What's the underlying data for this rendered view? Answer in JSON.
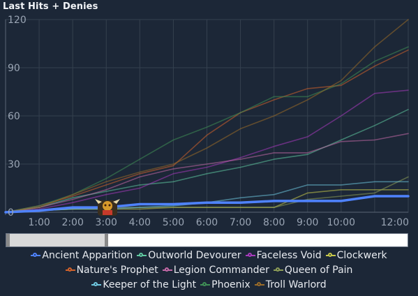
{
  "chart_data": {
    "type": "line",
    "title": "Last Hits + Denies",
    "xlabel": "",
    "ylabel": "",
    "x_ticks": [
      "1:00",
      "2:00",
      "3:00",
      "4:00",
      "5:00",
      "6:00",
      "7:00",
      "8:00",
      "9:00",
      "10:00",
      "12:00"
    ],
    "x_minutes": [
      0,
      1,
      2,
      3,
      4,
      5,
      6,
      7,
      8,
      9,
      10,
      11,
      12
    ],
    "ylim": [
      0,
      120
    ],
    "y_ticks": [
      0,
      30,
      60,
      90,
      120
    ],
    "grid": true,
    "legend_placement": "bottom",
    "series": [
      {
        "name": "Ancient Apparition",
        "color": "#4f83ff",
        "highlight": true,
        "values": [
          0,
          1,
          3,
          3,
          5,
          5,
          6,
          6,
          7,
          7,
          7,
          10,
          10
        ]
      },
      {
        "name": "Outworld Devourer",
        "color": "#5fc8a0",
        "values": [
          0,
          3,
          9,
          13,
          17,
          19,
          24,
          28,
          33,
          36,
          45,
          54,
          64
        ]
      },
      {
        "name": "Faceless Void",
        "color": "#a83bbd",
        "values": [
          0,
          2,
          6,
          11,
          15,
          24,
          28,
          34,
          41,
          47,
          60,
          74,
          76
        ]
      },
      {
        "name": "Clockwerk",
        "color": "#c7c84a",
        "values": [
          0,
          1,
          2,
          2,
          2,
          3,
          3,
          3,
          3,
          12,
          14,
          14,
          14
        ]
      },
      {
        "name": "Nature's Prophet",
        "color": "#d2622b",
        "values": [
          0,
          4,
          10,
          17,
          24,
          29,
          48,
          62,
          70,
          77,
          79,
          91,
          101
        ]
      },
      {
        "name": "Legion Commander",
        "color": "#c56aa8",
        "values": [
          0,
          3,
          8,
          14,
          22,
          27,
          30,
          33,
          37,
          37,
          44,
          45,
          49
        ]
      },
      {
        "name": "Queen of Pain",
        "color": "#8e9e58",
        "values": [
          0,
          1,
          2,
          3,
          3,
          3,
          3,
          3,
          3,
          8,
          10,
          12,
          22
        ]
      },
      {
        "name": "Keeper of the Light",
        "color": "#6ec7df",
        "values": [
          0,
          1,
          2,
          2,
          3,
          4,
          6,
          9,
          11,
          17,
          17,
          19,
          19
        ]
      },
      {
        "name": "Phoenix",
        "color": "#3f8f56",
        "values": [
          0,
          4,
          11,
          21,
          33,
          45,
          53,
          62,
          72,
          72,
          80,
          94,
          103
        ]
      },
      {
        "name": "Troll Warlord",
        "color": "#9a6b28",
        "values": [
          0,
          3,
          11,
          19,
          25,
          30,
          40,
          52,
          60,
          70,
          82,
          103,
          120
        ]
      }
    ]
  },
  "brush": {
    "start_minute": 0,
    "end_minute": 3
  }
}
